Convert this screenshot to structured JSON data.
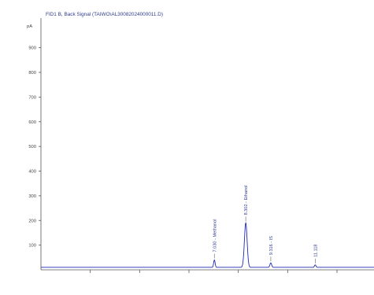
{
  "chart_data": {
    "type": "line",
    "title": "FID1 B, Back Signal (TAIWO\\AL30082024000011.D)",
    "ylabel": "pA",
    "xlabel": "",
    "ylim": [
      0,
      1020
    ],
    "xlim": [
      0,
      13.5
    ],
    "grid": false,
    "legend": "none",
    "yticks": [
      100,
      200,
      300,
      400,
      500,
      600,
      700,
      800,
      900
    ],
    "xticks": [
      2,
      4,
      6,
      8,
      10,
      12
    ],
    "baseline": 10,
    "series": [
      {
        "peaks": [
          {
            "rt": 7.03,
            "height": 30
          },
          {
            "rt": 8.302,
            "height": 180
          },
          {
            "rt": 9.316,
            "height": 18
          },
          {
            "rt": 11.118,
            "height": 10
          }
        ]
      }
    ],
    "peak_labels": [
      {
        "rt": 7.03,
        "text": "7.030 - Methanol"
      },
      {
        "rt": 8.302,
        "text": "8.302 - Ethanol"
      },
      {
        "rt": 9.316,
        "text": "9.316 - IS"
      },
      {
        "rt": 11.118,
        "text": "11.118"
      }
    ],
    "colors": {
      "trace": "#1f2bb5",
      "title": "#2f3e8f",
      "axis": "#555555"
    }
  }
}
